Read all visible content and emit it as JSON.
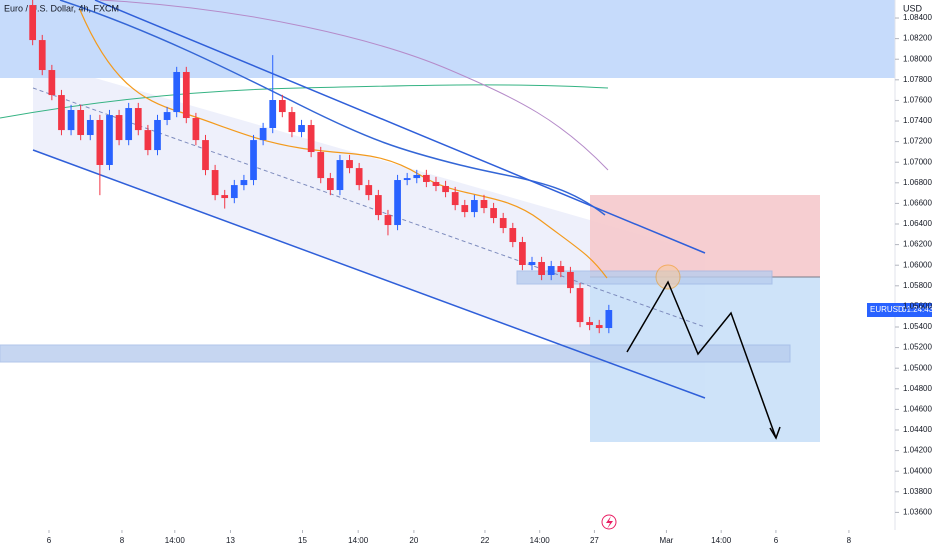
{
  "chart_data": {
    "type": "candlestick",
    "title": "Euro / U.S. Dollar, 4h, FXCM",
    "currency": "USD",
    "symbol_label": "EURUSD",
    "countdown": "01:24:43",
    "up_color": "#2962ff",
    "down_color": "#f23645",
    "open": [
      1.08526,
      1.08186,
      1.07895,
      1.07652,
      1.07312,
      1.07507,
      1.07264,
      1.0741,
      1.06973,
      1.07458,
      1.07215,
      1.07526,
      1.07312,
      1.07118,
      1.0741,
      1.07487,
      1.07876,
      1.07429,
      1.07215,
      1.06924,
      1.06681,
      1.06652,
      1.06778,
      1.06827,
      1.07215,
      1.07332,
      1.07604,
      1.07487,
      1.07293,
      1.07361,
      1.07099,
      1.06846,
      1.0673,
      1.07021,
      1.06943,
      1.06778,
      1.06681,
      1.06487,
      1.0639,
      1.06827,
      1.06846,
      1.06876,
      1.06808,
      1.06769,
      1.0671,
      1.06584,
      1.06516,
      1.06633,
      1.06555,
      1.06458,
      1.06361,
      1.06225,
      1.06002,
      1.06031,
      1.05905,
      1.05992,
      1.05934,
      1.05778,
      1.05448,
      1.05419,
      1.0539
    ],
    "high": [
      1.08576,
      1.08236,
      1.07945,
      1.07702,
      1.07557,
      1.07557,
      1.0746,
      1.0746,
      1.07508,
      1.07508,
      1.07576,
      1.07576,
      1.07362,
      1.0746,
      1.07537,
      1.07926,
      1.07926,
      1.07479,
      1.07265,
      1.06974,
      1.06731,
      1.06828,
      1.06877,
      1.07265,
      1.07382,
      1.0804,
      1.07654,
      1.07537,
      1.07411,
      1.07411,
      1.07149,
      1.06896,
      1.07071,
      1.07071,
      1.06993,
      1.06828,
      1.06731,
      1.06537,
      1.06877,
      1.06896,
      1.06926,
      1.06926,
      1.06858,
      1.06819,
      1.0676,
      1.06634,
      1.06683,
      1.06683,
      1.06605,
      1.06508,
      1.06411,
      1.06275,
      1.06081,
      1.06081,
      1.06042,
      1.06042,
      1.05984,
      1.05828,
      1.05498,
      1.05469,
      1.05615
    ],
    "low": [
      1.08136,
      1.07845,
      1.07602,
      1.07262,
      1.07262,
      1.07214,
      1.07214,
      1.0668,
      1.06923,
      1.07165,
      1.07165,
      1.07262,
      1.07068,
      1.07068,
      1.0736,
      1.07437,
      1.07379,
      1.07165,
      1.06874,
      1.06631,
      1.0655,
      1.06602,
      1.06728,
      1.06777,
      1.07165,
      1.07282,
      1.07437,
      1.07243,
      1.07243,
      1.07049,
      1.06796,
      1.0668,
      1.0668,
      1.06893,
      1.06728,
      1.06631,
      1.06437,
      1.0629,
      1.0634,
      1.06777,
      1.06796,
      1.06758,
      1.06719,
      1.0666,
      1.06534,
      1.06466,
      1.06466,
      1.06505,
      1.06408,
      1.06311,
      1.06175,
      1.05952,
      1.05952,
      1.05855,
      1.05855,
      1.05884,
      1.05728,
      1.05398,
      1.05369,
      1.0534,
      1.0534
    ],
    "close": [
      1.08186,
      1.07895,
      1.07652,
      1.07312,
      1.07507,
      1.07264,
      1.0741,
      1.06973,
      1.07458,
      1.07215,
      1.07526,
      1.07312,
      1.07118,
      1.0741,
      1.07487,
      1.07876,
      1.07429,
      1.07215,
      1.06924,
      1.06681,
      1.06652,
      1.06778,
      1.06827,
      1.07215,
      1.07332,
      1.07604,
      1.07487,
      1.07293,
      1.07361,
      1.07099,
      1.06846,
      1.0673,
      1.07021,
      1.06943,
      1.06778,
      1.06681,
      1.06487,
      1.0639,
      1.06827,
      1.06846,
      1.06876,
      1.06808,
      1.06769,
      1.0671,
      1.06584,
      1.06516,
      1.06633,
      1.06555,
      1.06458,
      1.06361,
      1.06225,
      1.06002,
      1.06031,
      1.05905,
      1.05992,
      1.05934,
      1.05778,
      1.05448,
      1.05419,
      1.0539,
      1.05565
    ],
    "xlim": [
      -3.4,
      89.8
    ],
    "xticks": [
      {
        "value": 1.7,
        "label": "6"
      },
      {
        "value": 9.3,
        "label": "8"
      },
      {
        "value": 14.8,
        "label": "14:00"
      },
      {
        "value": 20.6,
        "label": "13"
      },
      {
        "value": 28.1,
        "label": "15"
      },
      {
        "value": 33.9,
        "label": "14:00"
      },
      {
        "value": 39.7,
        "label": "20"
      },
      {
        "value": 47.1,
        "label": "22"
      },
      {
        "value": 52.8,
        "label": "14:00"
      },
      {
        "value": 58.5,
        "label": "27"
      },
      {
        "value": 66,
        "label": "Mar"
      },
      {
        "value": 71.7,
        "label": "14:00"
      },
      {
        "value": 77.4,
        "label": "6"
      },
      {
        "value": 85,
        "label": "8"
      }
    ],
    "ylim": [
      1.03429,
      1.08575
    ],
    "yticks": [
      {
        "value": 1.036,
        "label": "1.03600"
      },
      {
        "value": 1.038,
        "label": "1.03800"
      },
      {
        "value": 1.04,
        "label": "1.04000"
      },
      {
        "value": 1.042,
        "label": "1.04200"
      },
      {
        "value": 1.044,
        "label": "1.04400"
      },
      {
        "value": 1.046,
        "label": "1.04600"
      },
      {
        "value": 1.048,
        "label": "1.04800"
      },
      {
        "value": 1.05,
        "label": "1.05000"
      },
      {
        "value": 1.052,
        "label": "1.05200"
      },
      {
        "value": 1.054,
        "label": "1.05400"
      },
      {
        "value": 1.056,
        "label": "1.05600"
      },
      {
        "value": 1.058,
        "label": "1.05800"
      },
      {
        "value": 1.06,
        "label": "1.06000"
      },
      {
        "value": 1.062,
        "label": "1.06200"
      },
      {
        "value": 1.064,
        "label": "1.06400"
      },
      {
        "value": 1.066,
        "label": "1.06600"
      },
      {
        "value": 1.068,
        "label": "1.06800"
      },
      {
        "value": 1.07,
        "label": "1.07000"
      },
      {
        "value": 1.072,
        "label": "1.07200"
      },
      {
        "value": 1.074,
        "label": "1.07400"
      },
      {
        "value": 1.076,
        "label": "1.07600"
      },
      {
        "value": 1.078,
        "label": "1.07800"
      },
      {
        "value": 1.08,
        "label": "1.08000"
      },
      {
        "value": 1.082,
        "label": "1.08200"
      },
      {
        "value": 1.084,
        "label": "1.08400"
      }
    ]
  }
}
